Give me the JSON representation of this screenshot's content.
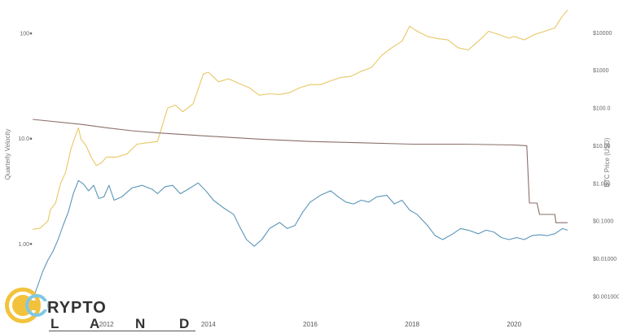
{
  "chart_data": {
    "type": "line",
    "title": "",
    "ylabel_left": "Quarterly Velocity",
    "ylabel_right": "BTC Price (USD)",
    "x_range": [
      2010.55,
      2021.1
    ],
    "y_left_range_log": [
      0.28,
      180
    ],
    "y_right_range_log": [
      0.0007,
      50000
    ],
    "x_ticks": [
      2012,
      2014,
      2016,
      2018,
      2020
    ],
    "y_left_ticks": [
      {
        "value": 1,
        "label": "1.00"
      },
      {
        "value": 10,
        "label": "10.0"
      },
      {
        "value": 100,
        "label": "100"
      }
    ],
    "y_right_ticks": [
      {
        "value": 0.001,
        "label": "$0.001000"
      },
      {
        "value": 0.01,
        "label": "$0.01000"
      },
      {
        "value": 0.1,
        "label": "$0.1000"
      },
      {
        "value": 1,
        "label": "$1.000"
      },
      {
        "value": 10,
        "label": "$10.00"
      },
      {
        "value": 100,
        "label": "$100.0"
      },
      {
        "value": 1000,
        "label": "$1000"
      },
      {
        "value": 10000,
        "label": "$10000"
      }
    ],
    "grid": false,
    "series": [
      {
        "axis": "right",
        "color": "#e8c766",
        "points": [
          [
            2010.55,
            0.06
          ],
          [
            2010.7,
            0.065
          ],
          [
            2010.85,
            0.1
          ],
          [
            2010.9,
            0.2
          ],
          [
            2011.0,
            0.3
          ],
          [
            2011.1,
            1.0
          ],
          [
            2011.2,
            2.0
          ],
          [
            2011.3,
            8
          ],
          [
            2011.4,
            20
          ],
          [
            2011.45,
            30
          ],
          [
            2011.5,
            15
          ],
          [
            2011.6,
            10
          ],
          [
            2011.7,
            5
          ],
          [
            2011.8,
            3
          ],
          [
            2011.9,
            3.5
          ],
          [
            2012.0,
            5
          ],
          [
            2012.2,
            5
          ],
          [
            2012.4,
            6
          ],
          [
            2012.6,
            11
          ],
          [
            2012.8,
            12
          ],
          [
            2013.0,
            13
          ],
          [
            2013.2,
            100
          ],
          [
            2013.35,
            120
          ],
          [
            2013.5,
            80
          ],
          [
            2013.7,
            130
          ],
          [
            2013.9,
            800
          ],
          [
            2014.0,
            900
          ],
          [
            2014.2,
            500
          ],
          [
            2014.4,
            600
          ],
          [
            2014.6,
            450
          ],
          [
            2014.8,
            350
          ],
          [
            2015.0,
            220
          ],
          [
            2015.2,
            240
          ],
          [
            2015.4,
            230
          ],
          [
            2015.6,
            260
          ],
          [
            2015.8,
            350
          ],
          [
            2016.0,
            420
          ],
          [
            2016.2,
            420
          ],
          [
            2016.4,
            530
          ],
          [
            2016.6,
            650
          ],
          [
            2016.8,
            700
          ],
          [
            2017.0,
            950
          ],
          [
            2017.2,
            1200
          ],
          [
            2017.4,
            2500
          ],
          [
            2017.6,
            4000
          ],
          [
            2017.8,
            6000
          ],
          [
            2017.95,
            15000
          ],
          [
            2018.1,
            11000
          ],
          [
            2018.3,
            8000
          ],
          [
            2018.5,
            7000
          ],
          [
            2018.7,
            6500
          ],
          [
            2018.9,
            4000
          ],
          [
            2019.1,
            3500
          ],
          [
            2019.3,
            6000
          ],
          [
            2019.5,
            11000
          ],
          [
            2019.7,
            9000
          ],
          [
            2019.9,
            7200
          ],
          [
            2020.0,
            8000
          ],
          [
            2020.2,
            6500
          ],
          [
            2020.4,
            9000
          ],
          [
            2020.6,
            11000
          ],
          [
            2020.8,
            13500
          ],
          [
            2020.95,
            28000
          ],
          [
            2021.05,
            40000
          ]
        ]
      },
      {
        "axis": "left",
        "color": "#5b95b8",
        "points": [
          [
            2010.55,
            0.3
          ],
          [
            2010.65,
            0.4
          ],
          [
            2010.75,
            0.55
          ],
          [
            2010.85,
            0.7
          ],
          [
            2010.95,
            0.85
          ],
          [
            2011.05,
            1.1
          ],
          [
            2011.15,
            1.5
          ],
          [
            2011.25,
            2.0
          ],
          [
            2011.35,
            3.0
          ],
          [
            2011.45,
            4.0
          ],
          [
            2011.55,
            3.7
          ],
          [
            2011.65,
            3.2
          ],
          [
            2011.75,
            3.6
          ],
          [
            2011.85,
            2.7
          ],
          [
            2011.95,
            2.8
          ],
          [
            2012.05,
            3.6
          ],
          [
            2012.15,
            2.6
          ],
          [
            2012.3,
            2.8
          ],
          [
            2012.5,
            3.4
          ],
          [
            2012.7,
            3.6
          ],
          [
            2012.9,
            3.3
          ],
          [
            2013.0,
            3.0
          ],
          [
            2013.15,
            3.5
          ],
          [
            2013.3,
            3.6
          ],
          [
            2013.45,
            3.0
          ],
          [
            2013.6,
            3.3
          ],
          [
            2013.8,
            3.8
          ],
          [
            2013.95,
            3.2
          ],
          [
            2014.1,
            2.6
          ],
          [
            2014.3,
            2.2
          ],
          [
            2014.5,
            1.9
          ],
          [
            2014.6,
            1.5
          ],
          [
            2014.75,
            1.1
          ],
          [
            2014.9,
            0.95
          ],
          [
            2015.05,
            1.1
          ],
          [
            2015.2,
            1.4
          ],
          [
            2015.4,
            1.6
          ],
          [
            2015.55,
            1.4
          ],
          [
            2015.7,
            1.5
          ],
          [
            2015.85,
            2.0
          ],
          [
            2016.0,
            2.5
          ],
          [
            2016.2,
            2.9
          ],
          [
            2016.4,
            3.2
          ],
          [
            2016.55,
            2.8
          ],
          [
            2016.7,
            2.5
          ],
          [
            2016.85,
            2.4
          ],
          [
            2017.0,
            2.6
          ],
          [
            2017.15,
            2.5
          ],
          [
            2017.3,
            2.8
          ],
          [
            2017.5,
            2.9
          ],
          [
            2017.65,
            2.4
          ],
          [
            2017.8,
            2.6
          ],
          [
            2017.95,
            2.1
          ],
          [
            2018.1,
            1.9
          ],
          [
            2018.3,
            1.5
          ],
          [
            2018.45,
            1.2
          ],
          [
            2018.6,
            1.1
          ],
          [
            2018.8,
            1.25
          ],
          [
            2018.95,
            1.4
          ],
          [
            2019.1,
            1.35
          ],
          [
            2019.3,
            1.25
          ],
          [
            2019.45,
            1.35
          ],
          [
            2019.6,
            1.3
          ],
          [
            2019.75,
            1.15
          ],
          [
            2019.9,
            1.1
          ],
          [
            2020.05,
            1.15
          ],
          [
            2020.2,
            1.1
          ],
          [
            2020.35,
            1.2
          ],
          [
            2020.5,
            1.22
          ],
          [
            2020.65,
            1.2
          ],
          [
            2020.8,
            1.25
          ],
          [
            2020.95,
            1.4
          ],
          [
            2021.05,
            1.35
          ]
        ]
      },
      {
        "axis": "right",
        "color": "#8a6f6a",
        "points": [
          [
            2010.55,
            50
          ],
          [
            2011.5,
            37
          ],
          [
            2012.0,
            30
          ],
          [
            2012.5,
            25
          ],
          [
            2013.0,
            22
          ],
          [
            2014.0,
            18
          ],
          [
            2015.0,
            15
          ],
          [
            2016.0,
            13
          ],
          [
            2017.0,
            12
          ],
          [
            2018.0,
            11
          ],
          [
            2019.0,
            11
          ],
          [
            2020.0,
            10.5
          ],
          [
            2020.25,
            10
          ],
          [
            2020.3,
            0.3
          ],
          [
            2020.45,
            0.3
          ],
          [
            2020.5,
            0.15
          ],
          [
            2020.8,
            0.15
          ],
          [
            2020.82,
            0.09
          ],
          [
            2021.05,
            0.09
          ]
        ]
      }
    ]
  },
  "logo": {
    "glyph": "C",
    "word": "RYPTO",
    "sub_letters": [
      "L",
      "A",
      "N",
      "D"
    ]
  }
}
